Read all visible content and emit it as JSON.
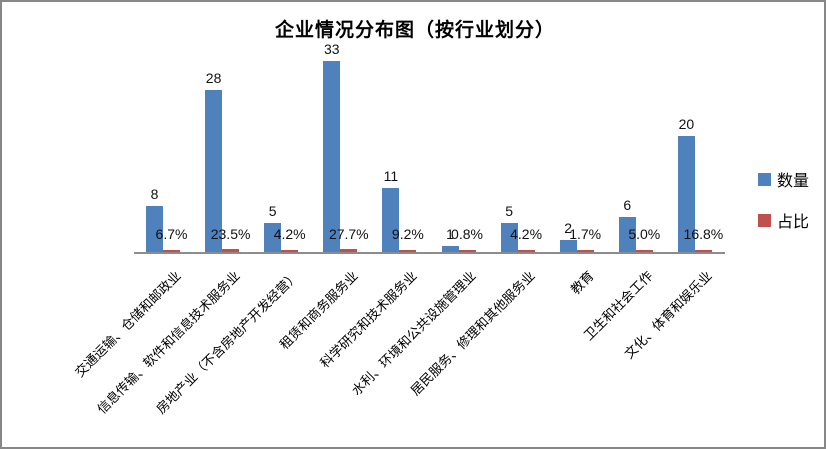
{
  "chart": {
    "title": "企业情况分布图（按行业划分）"
  },
  "legend": {
    "items": [
      {
        "label": "数量",
        "color": "#4F81BD"
      },
      {
        "label": "占比",
        "color": "#C0504D"
      }
    ]
  },
  "chart_data": {
    "type": "bar",
    "title": "企业情况分布图（按行业划分）",
    "categories": [
      "交通运输、仓储和邮政业",
      "信息传输、软件和信息技术服务业",
      "房地产业（不含房地产开发经营）",
      "租赁和商务服务业",
      "科学研究和技术服务业",
      "水利、环境和公共设施管理业",
      "居民服务、修理和其他服务业",
      "教育",
      "卫生和社会工作",
      "文化、体育和娱乐业"
    ],
    "series": [
      {
        "name": "数量",
        "color": "#4F81BD",
        "values": [
          8,
          28,
          5,
          33,
          11,
          1,
          5,
          2,
          6,
          20
        ],
        "data_labels": [
          "8",
          "28",
          "5",
          "33",
          "11",
          "1",
          "5",
          "2",
          "6",
          "20"
        ]
      },
      {
        "name": "占比",
        "color": "#C0504D",
        "values_percent": [
          6.7,
          23.5,
          4.2,
          27.7,
          9.2,
          0.8,
          4.2,
          1.7,
          5.0,
          16.8
        ],
        "data_labels": [
          "6.7%",
          "23.5%",
          "4.2%",
          "27.7%",
          "9.2%",
          "0.8%",
          "4.2%",
          "1.7%",
          "5.0%",
          "16.8%"
        ]
      }
    ],
    "xlabel": "",
    "ylabel": "",
    "ylim": [
      0,
      35
    ],
    "y_axis_visible": false,
    "gridlines": false,
    "legend_position": "right",
    "category_label_rotation_deg": 45
  }
}
